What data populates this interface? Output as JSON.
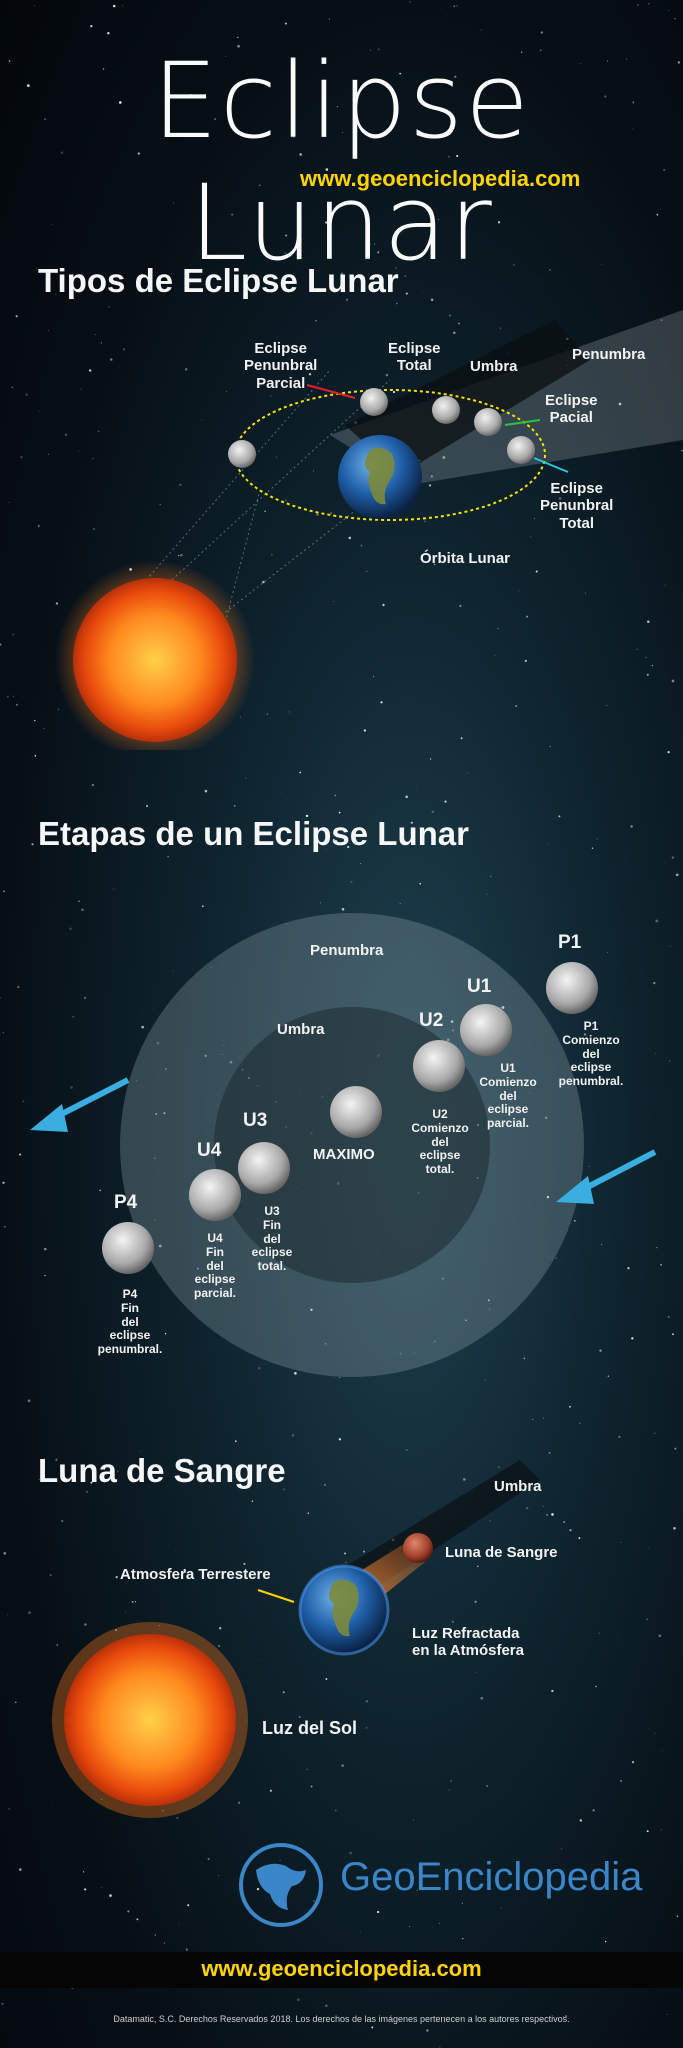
{
  "header": {
    "title": "Eclipse Lunar",
    "url": "www.geoenciclopedia.com"
  },
  "types_section": {
    "title": "Tipos de Eclipse Lunar",
    "labels": {
      "penumbral_partial": [
        "Eclipse",
        "Penunbral",
        "Parcial"
      ],
      "total": [
        "Eclipse",
        "Total"
      ],
      "umbra": "Umbra",
      "penumbra": "Penumbra",
      "partial": [
        "Eclipse",
        "Pacial"
      ],
      "penumbral_total": [
        "Eclipse",
        "Penunbral",
        "Total"
      ],
      "orbit": "Órbita Lunar"
    }
  },
  "stages_section": {
    "title": "Etapas de un Eclipse Lunar",
    "penumbra": "Penumbra",
    "umbra": "Umbra",
    "maximo": "MAXIMO",
    "stages": {
      "p1": {
        "code": "P1",
        "desc": [
          "P1",
          "Comienzo",
          "del",
          "eclipse",
          "penumbral."
        ]
      },
      "u1": {
        "code": "U1",
        "desc": [
          "U1",
          "Comienzo",
          "del",
          "eclipse",
          "parcial."
        ]
      },
      "u2": {
        "code": "U2",
        "desc": [
          "U2",
          "Comienzo",
          "del",
          "eclipse",
          "total."
        ]
      },
      "u3": {
        "code": "U3",
        "desc": [
          "U3",
          "Fin",
          "del",
          "eclipse",
          "total."
        ]
      },
      "u4": {
        "code": "U4",
        "desc": [
          "U4",
          "Fin",
          "del",
          "eclipse",
          "parcial."
        ]
      },
      "p4": {
        "code": "P4",
        "desc": [
          "P4",
          "Fin",
          "del",
          "eclipse",
          "penumbral."
        ]
      }
    }
  },
  "blood_section": {
    "title": "Luna de Sangre",
    "umbra": "Umbra",
    "blood_moon": "Luna de Sangre",
    "atmosphere": "Atmosfera Terrestere",
    "refracted": [
      "Luz Refractada",
      "en la Atmósfera"
    ],
    "sunlight": "Luz del Sol"
  },
  "footer": {
    "brand": "GeoEnciclopedia",
    "url": "www.geoenciclopedia.com",
    "copyright": "Datamatic, S.C. Derechos Reservados 2018. Los derechos de las imágenes pertenecen a los autores respectivos."
  },
  "colors": {
    "accent_yellow": "#ffd400",
    "arrow_blue": "#3aaee0",
    "brand_blue": "#3a86c9",
    "sun_orange": "#ff7a1a"
  }
}
